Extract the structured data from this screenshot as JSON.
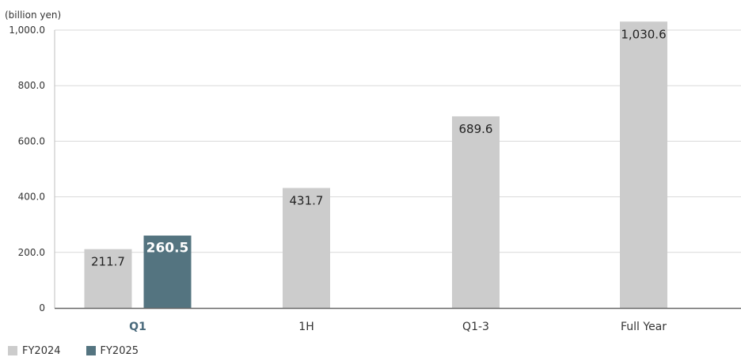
{
  "chart_data": {
    "type": "bar",
    "unit_label": "(billion yen)",
    "categories": [
      "Q1",
      "1H",
      "Q1-3",
      "Full Year"
    ],
    "highlight_category": "Q1",
    "ylim": [
      0,
      1000
    ],
    "yticks": [
      0,
      200,
      400,
      600,
      800,
      1000
    ],
    "ytick_labels": [
      "0",
      "200.0",
      "400.0",
      "600.0",
      "800.0",
      "1,000.0"
    ],
    "grid": true,
    "legend_position": "bottom-left",
    "series": [
      {
        "name": "FY2024",
        "color": "#cccccc",
        "values": [
          211.7,
          431.7,
          689.6,
          1030.6
        ],
        "labels": [
          "211.7",
          "431.7",
          "689.6",
          "1,030.6"
        ]
      },
      {
        "name": "FY2025",
        "color": "#547480",
        "values": [
          260.5,
          null,
          null,
          null
        ],
        "labels": [
          "260.5",
          "",
          "",
          ""
        ]
      }
    ]
  },
  "colors": {
    "axis": "#666666",
    "grid": "#d9d9d9",
    "highlight": "#4a6a7c",
    "text": "#333333"
  }
}
